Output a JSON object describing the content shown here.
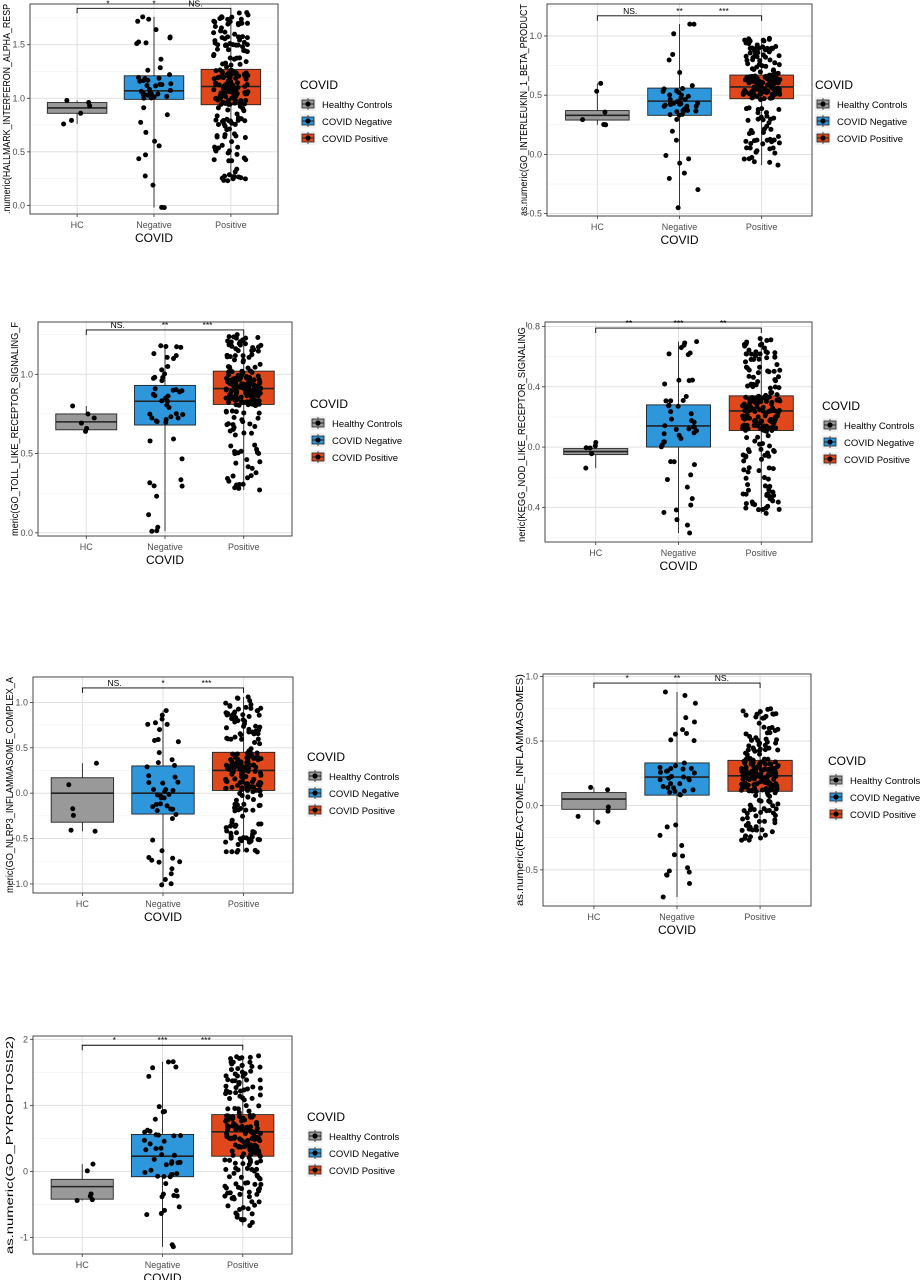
{
  "legend": {
    "title": "COVID",
    "entries": [
      {
        "label": "Healthy Controls",
        "color": "#999999"
      },
      {
        "label": "COVID Negative",
        "color": "#2e97dc"
      },
      {
        "label": "COVID Positive",
        "color": "#e0481c"
      }
    ]
  },
  "chart_data": [
    {
      "type": "box",
      "ylabel": ".numeric(HALLMARK_INTERFERON_ALPHA_RESP",
      "xlabel": "COVID",
      "categories": [
        "HC",
        "Negative",
        "Positive"
      ],
      "ylim": [
        -0.08,
        1.88
      ],
      "yticks": [
        0.0,
        0.5,
        1.0,
        1.5
      ],
      "ytick_labels": [
        "0.0",
        "0.5",
        "1.0",
        "1.5"
      ],
      "grid": true,
      "legend": "right",
      "boxes": [
        {
          "q1": 0.86,
          "median": 0.91,
          "q3": 0.96,
          "whisker_low": 0.76,
          "whisker_high": 0.98,
          "n": 6
        },
        {
          "q1": 0.99,
          "median": 1.07,
          "q3": 1.21,
          "whisker_low": -0.02,
          "whisker_high": 1.76,
          "n": 50
        },
        {
          "q1": 0.94,
          "median": 1.11,
          "q3": 1.27,
          "whisker_low": 0.23,
          "whisker_high": 1.8,
          "n": 220
        }
      ],
      "significance": {
        "y": 1.84,
        "labels": [
          "*",
          "*",
          "NS."
        ]
      }
    },
    {
      "type": "box",
      "ylabel": "as.numeric(GO_INTERLEUKIN_1_BETA_PRODUCT",
      "xlabel": "COVID",
      "categories": [
        "HC",
        "Negative",
        "Positive"
      ],
      "ylim": [
        -0.52,
        1.27
      ],
      "yticks": [
        -0.5,
        0.0,
        0.5,
        1.0
      ],
      "ytick_labels": [
        "-0.5",
        "0.0",
        "0.5",
        "1.0"
      ],
      "grid": true,
      "legend": "right",
      "boxes": [
        {
          "q1": 0.29,
          "median": 0.33,
          "q3": 0.37,
          "whisker_low": 0.25,
          "whisker_high": 0.6,
          "n": 6
        },
        {
          "q1": 0.33,
          "median": 0.45,
          "q3": 0.56,
          "whisker_low": -0.45,
          "whisker_high": 1.1,
          "n": 50
        },
        {
          "q1": 0.47,
          "median": 0.57,
          "q3": 0.67,
          "whisker_low": -0.09,
          "whisker_high": 0.98,
          "n": 200
        }
      ],
      "significance": {
        "y": 1.17,
        "labels": [
          "NS.",
          "**",
          "***"
        ]
      }
    },
    {
      "type": "box",
      "ylabel": "meric(GO_TOLL_LIKE_RECEPTOR_SIGNALING_F",
      "xlabel": "COVID",
      "categories": [
        "HC",
        "Negative",
        "Positive"
      ],
      "ylim": [
        -0.02,
        1.33
      ],
      "yticks": [
        0.0,
        0.5,
        1.0
      ],
      "ytick_labels": [
        "0.0",
        "0.5",
        "1.0"
      ],
      "grid": true,
      "legend": "right",
      "boxes": [
        {
          "q1": 0.65,
          "median": 0.7,
          "q3": 0.75,
          "whisker_low": 0.64,
          "whisker_high": 0.8,
          "n": 6
        },
        {
          "q1": 0.68,
          "median": 0.83,
          "q3": 0.93,
          "whisker_low": 0.01,
          "whisker_high": 1.18,
          "n": 50
        },
        {
          "q1": 0.81,
          "median": 0.91,
          "q3": 1.02,
          "whisker_low": 0.27,
          "whisker_high": 1.25,
          "n": 210
        }
      ],
      "significance": {
        "y": 1.28,
        "labels": [
          "NS.",
          "**",
          "***"
        ]
      }
    },
    {
      "type": "box",
      "ylabel": "neric(KEGG_NOD_LIKE_RECEPTOR_SIGNALING_",
      "xlabel": "COVID",
      "categories": [
        "HC",
        "Negative",
        "Positive"
      ],
      "ylim": [
        -0.63,
        0.83
      ],
      "yticks": [
        -0.4,
        0.0,
        0.4,
        0.8
      ],
      "ytick_labels": [
        "-0.4",
        "0.0",
        "0.4",
        "0.8"
      ],
      "grid": true,
      "legend": "right",
      "boxes": [
        {
          "q1": -0.05,
          "median": -0.03,
          "q3": -0.01,
          "whisker_low": -0.14,
          "whisker_high": 0.03,
          "n": 6
        },
        {
          "q1": 0.0,
          "median": 0.14,
          "q3": 0.28,
          "whisker_low": -0.57,
          "whisker_high": 0.7,
          "n": 50
        },
        {
          "q1": 0.11,
          "median": 0.24,
          "q3": 0.34,
          "whisker_low": -0.44,
          "whisker_high": 0.72,
          "n": 210
        }
      ],
      "significance": {
        "y": 0.79,
        "labels": [
          "**",
          "***",
          "**"
        ]
      }
    },
    {
      "type": "box",
      "ylabel": "meric(GO_NLRP3_INFLAMMASOME_COMPLEX_A",
      "xlabel": "COVID",
      "categories": [
        "HC",
        "Negative",
        "Positive"
      ],
      "ylim": [
        -1.1,
        1.28
      ],
      "yticks": [
        -1.0,
        -0.5,
        0.0,
        0.5,
        1.0
      ],
      "ytick_labels": [
        "-1.0",
        "-0.5",
        "0.0",
        "0.5",
        "1.0"
      ],
      "grid": true,
      "legend": "right",
      "boxes": [
        {
          "q1": -0.32,
          "median": 0.0,
          "q3": 0.17,
          "whisker_low": -0.42,
          "whisker_high": 0.33,
          "n": 6
        },
        {
          "q1": -0.23,
          "median": 0.0,
          "q3": 0.3,
          "whisker_low": -1.01,
          "whisker_high": 0.91,
          "n": 50
        },
        {
          "q1": 0.03,
          "median": 0.25,
          "q3": 0.45,
          "whisker_low": -0.65,
          "whisker_high": 1.06,
          "n": 210
        }
      ],
      "significance": {
        "y": 1.16,
        "labels": [
          "NS.",
          "*",
          "***"
        ]
      }
    },
    {
      "type": "box",
      "ylabel": "as.numeric(REACTOME_INFLAMMASOMES)",
      "xlabel": "COVID",
      "categories": [
        "HC",
        "Negative",
        "Positive"
      ],
      "ylim": [
        -0.78,
        1.02
      ],
      "yticks": [
        -0.5,
        0.0,
        0.5,
        1.0
      ],
      "ytick_labels": [
        "-0.5",
        "0.0",
        "0.5",
        "1.0"
      ],
      "grid": true,
      "legend": "right",
      "boxes": [
        {
          "q1": -0.03,
          "median": 0.05,
          "q3": 0.1,
          "whisker_low": -0.13,
          "whisker_high": 0.14,
          "n": 6
        },
        {
          "q1": 0.08,
          "median": 0.22,
          "q3": 0.33,
          "whisker_low": -0.71,
          "whisker_high": 0.88,
          "n": 50
        },
        {
          "q1": 0.11,
          "median": 0.23,
          "q3": 0.35,
          "whisker_low": -0.27,
          "whisker_high": 0.75,
          "n": 210
        }
      ],
      "significance": {
        "y": 0.95,
        "labels": [
          "*",
          "**",
          "NS."
        ]
      }
    },
    {
      "type": "box",
      "ylabel": "as.numeric(GO_PYROPTOSIS2)",
      "xlabel": "COVID",
      "categories": [
        "HC",
        "Negative",
        "Positive"
      ],
      "ylim": [
        -1.25,
        2.05
      ],
      "yticks": [
        -1,
        0,
        1,
        2
      ],
      "ytick_labels": [
        "-1",
        "0",
        "1",
        "2"
      ],
      "grid": true,
      "legend": "right",
      "boxes": [
        {
          "q1": -0.42,
          "median": -0.23,
          "q3": -0.12,
          "whisker_low": -0.44,
          "whisker_high": 0.11,
          "n": 6
        },
        {
          "q1": -0.08,
          "median": 0.23,
          "q3": 0.56,
          "whisker_low": -1.14,
          "whisker_high": 1.66,
          "n": 50
        },
        {
          "q1": 0.23,
          "median": 0.6,
          "q3": 0.86,
          "whisker_low": -0.82,
          "whisker_high": 1.75,
          "n": 210
        }
      ],
      "significance": {
        "y": 1.91,
        "labels": [
          "*",
          "***",
          "***"
        ]
      }
    }
  ]
}
